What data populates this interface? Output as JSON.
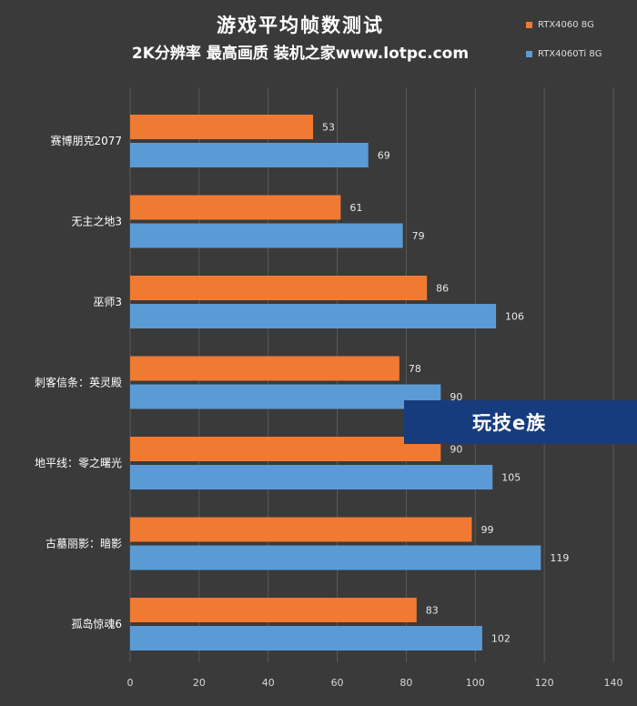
{
  "header": {
    "title": "游戏平均帧数测试",
    "subtitle": "2K分辨率 最高画质 装机之家www.lotpc.com"
  },
  "watermark": {
    "text": "玩技e族"
  },
  "colors": {
    "background": "#3a3a3a",
    "grid": "#5a5a5a",
    "series_0": "#f07a32",
    "series_1": "#5b9bd5",
    "label_text": "#e8e8e8"
  },
  "chart_data": {
    "type": "bar",
    "orientation": "horizontal",
    "title": "游戏平均帧数测试",
    "subtitle": "2K分辨率 最高画质 装机之家www.lotpc.com",
    "categories": [
      "赛博朋克2077",
      "无主之地3",
      "巫师3",
      "刺客信条：英灵殿",
      "地平线：零之曙光",
      "古墓丽影：暗影",
      "孤岛惊魂6"
    ],
    "series": [
      {
        "name": "RTX4060 8G",
        "values": [
          53,
          61,
          86,
          78,
          90,
          99,
          83
        ]
      },
      {
        "name": "RTX4060Ti 8G",
        "values": [
          69,
          79,
          106,
          90,
          105,
          119,
          102
        ]
      }
    ],
    "xlim": [
      0,
      140
    ],
    "xticks": [
      0,
      20,
      40,
      60,
      80,
      100,
      120,
      140
    ],
    "xlabel": "",
    "ylabel": "",
    "grid": true,
    "legend": "top-right",
    "data_labels": true
  }
}
